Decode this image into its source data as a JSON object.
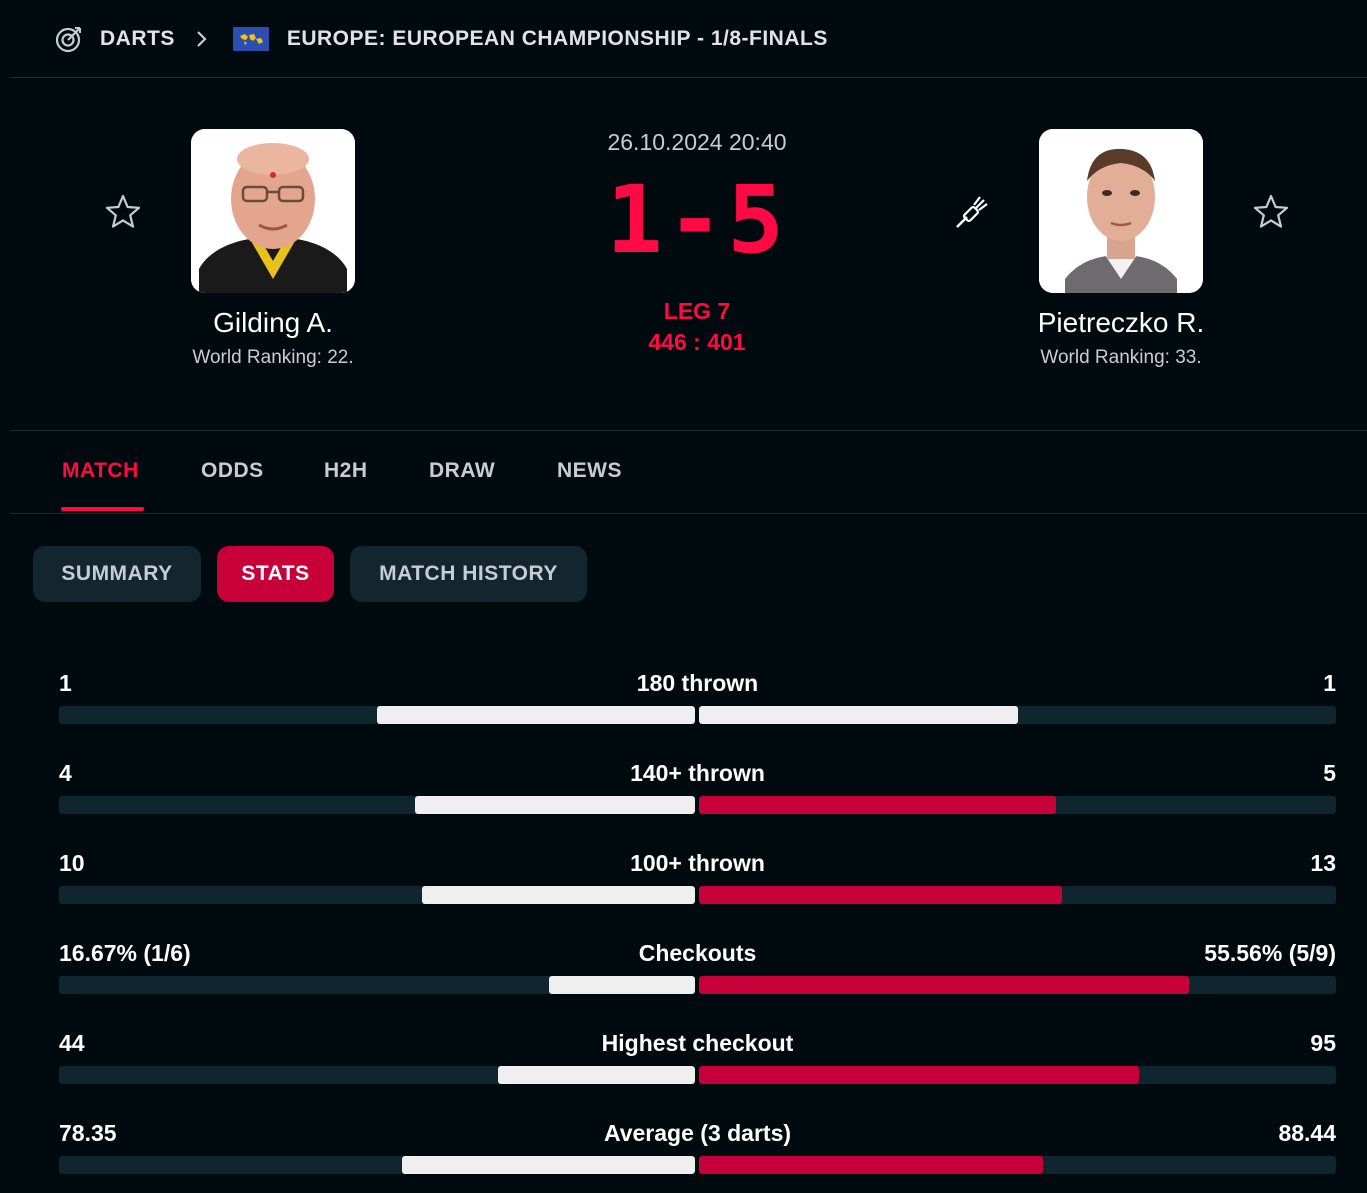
{
  "breadcrumb": {
    "sport": "DARTS",
    "competition": "EUROPE: EUROPEAN CHAMPIONSHIP - 1/8-FINALS",
    "sport_icon": "darts-target-icon",
    "flag_icon": "europe-flag-icon"
  },
  "match": {
    "datetime": "26.10.2024 20:40",
    "score": "1-5",
    "leg": "LEG 7",
    "leg_score": "446 : 401"
  },
  "home": {
    "name": "Gilding A.",
    "ranking": "World Ranking: 22."
  },
  "away": {
    "name": "Pietreczko R.",
    "ranking": "World Ranking: 33.",
    "throwing_icon": "dart-icon"
  },
  "tabs": [
    {
      "label": "MATCH",
      "active": true
    },
    {
      "label": "ODDS",
      "active": false
    },
    {
      "label": "H2H",
      "active": false
    },
    {
      "label": "DRAW",
      "active": false
    },
    {
      "label": "NEWS",
      "active": false
    }
  ],
  "subtabs": [
    {
      "label": "SUMMARY",
      "active": false
    },
    {
      "label": "STATS",
      "active": true
    },
    {
      "label": "MATCH HISTORY",
      "active": false
    }
  ],
  "colors": {
    "accent": "#ff0a45",
    "white_bar": "#efefef",
    "red_bar": "#c8003a",
    "track": "#0f2530"
  },
  "stats": [
    {
      "label": "180 thrown",
      "home": "1",
      "away": "1",
      "home_share": 0.5,
      "away_share": 0.5,
      "away_color": "#efefef"
    },
    {
      "label": "140+ thrown",
      "home": "4",
      "away": "5",
      "home_share": 0.44,
      "away_share": 0.56,
      "away_color": "#c8003a"
    },
    {
      "label": "100+ thrown",
      "home": "10",
      "away": "13",
      "home_share": 0.43,
      "away_share": 0.57,
      "away_color": "#c8003a"
    },
    {
      "label": "Checkouts",
      "home": "16.67% (1/6)",
      "away": "55.56% (5/9)",
      "home_share": 0.23,
      "away_share": 0.77,
      "away_color": "#c8003a"
    },
    {
      "label": "Highest checkout",
      "home": "44",
      "away": "95",
      "home_share": 0.31,
      "away_share": 0.69,
      "away_color": "#c8003a"
    },
    {
      "label": "Average (3 darts)",
      "home": "78.35",
      "away": "88.44",
      "home_share": 0.46,
      "away_share": 0.54,
      "away_color": "#c8003a"
    }
  ]
}
